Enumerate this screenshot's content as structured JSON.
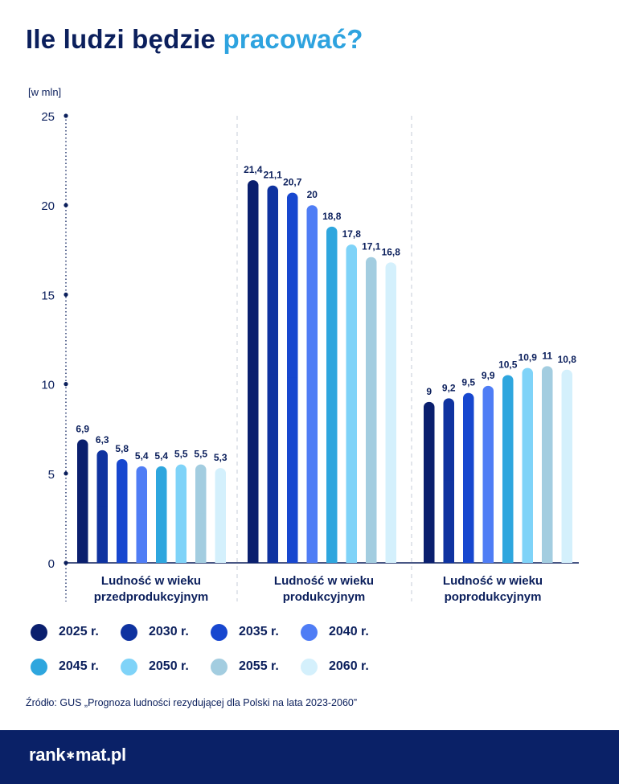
{
  "title": {
    "part1": "Ile ludzi będzie",
    "part2": "pracować?"
  },
  "chart_data": {
    "type": "bar",
    "ylabel": "[w mln]",
    "ylim": [
      0,
      25
    ],
    "yticks": [
      "0",
      "5",
      "10",
      "15",
      "20",
      "25"
    ],
    "groups": [
      "Ludność w wieku\nprzedprodukcyjnym",
      "Ludność w wieku\nprodukcyjnym",
      "Ludność w wieku\npoprodukcyjnym"
    ],
    "series": [
      {
        "name": "2025 r.",
        "color": "#0a1f6e",
        "values": [
          6.9,
          21.4,
          9.0
        ],
        "labels": [
          "6,9",
          "21,4",
          "9"
        ]
      },
      {
        "name": "2030 r.",
        "color": "#0f33a0",
        "values": [
          6.3,
          21.1,
          9.2
        ],
        "labels": [
          "6,3",
          "21,1",
          "9,2"
        ]
      },
      {
        "name": "2035 r.",
        "color": "#1747cf",
        "values": [
          5.8,
          20.7,
          9.5
        ],
        "labels": [
          "5,8",
          "20,7",
          "9,5"
        ]
      },
      {
        "name": "2040 r.",
        "color": "#4f7df5",
        "values": [
          5.4,
          20.0,
          9.9
        ],
        "labels": [
          "5,4",
          "20",
          "9,9"
        ]
      },
      {
        "name": "2045 r.",
        "color": "#2ea6de",
        "values": [
          5.4,
          18.8,
          10.5
        ],
        "labels": [
          "5,4",
          "18,8",
          "10,5"
        ]
      },
      {
        "name": "2050 r.",
        "color": "#7fd3f8",
        "values": [
          5.5,
          17.8,
          10.9
        ],
        "labels": [
          "5,5",
          "17,8",
          "10,9"
        ]
      },
      {
        "name": "2055 r.",
        "color": "#a3cde0",
        "values": [
          5.5,
          17.1,
          11.0
        ],
        "labels": [
          "5,5",
          "17,1",
          "11"
        ]
      },
      {
        "name": "2060 r.",
        "color": "#d4f0fc",
        "values": [
          5.3,
          16.8,
          10.8
        ],
        "labels": [
          "5,3",
          "16,8",
          "10,8"
        ]
      }
    ],
    "grid": false,
    "legend_position": "bottom"
  },
  "source": "Źródło: GUS „Prognoza ludności rezydującej dla Polski na lata 2023-2060”",
  "footer": {
    "logo_left": "rank",
    "logo_right": "mat.pl",
    "logo_star": "✱"
  }
}
